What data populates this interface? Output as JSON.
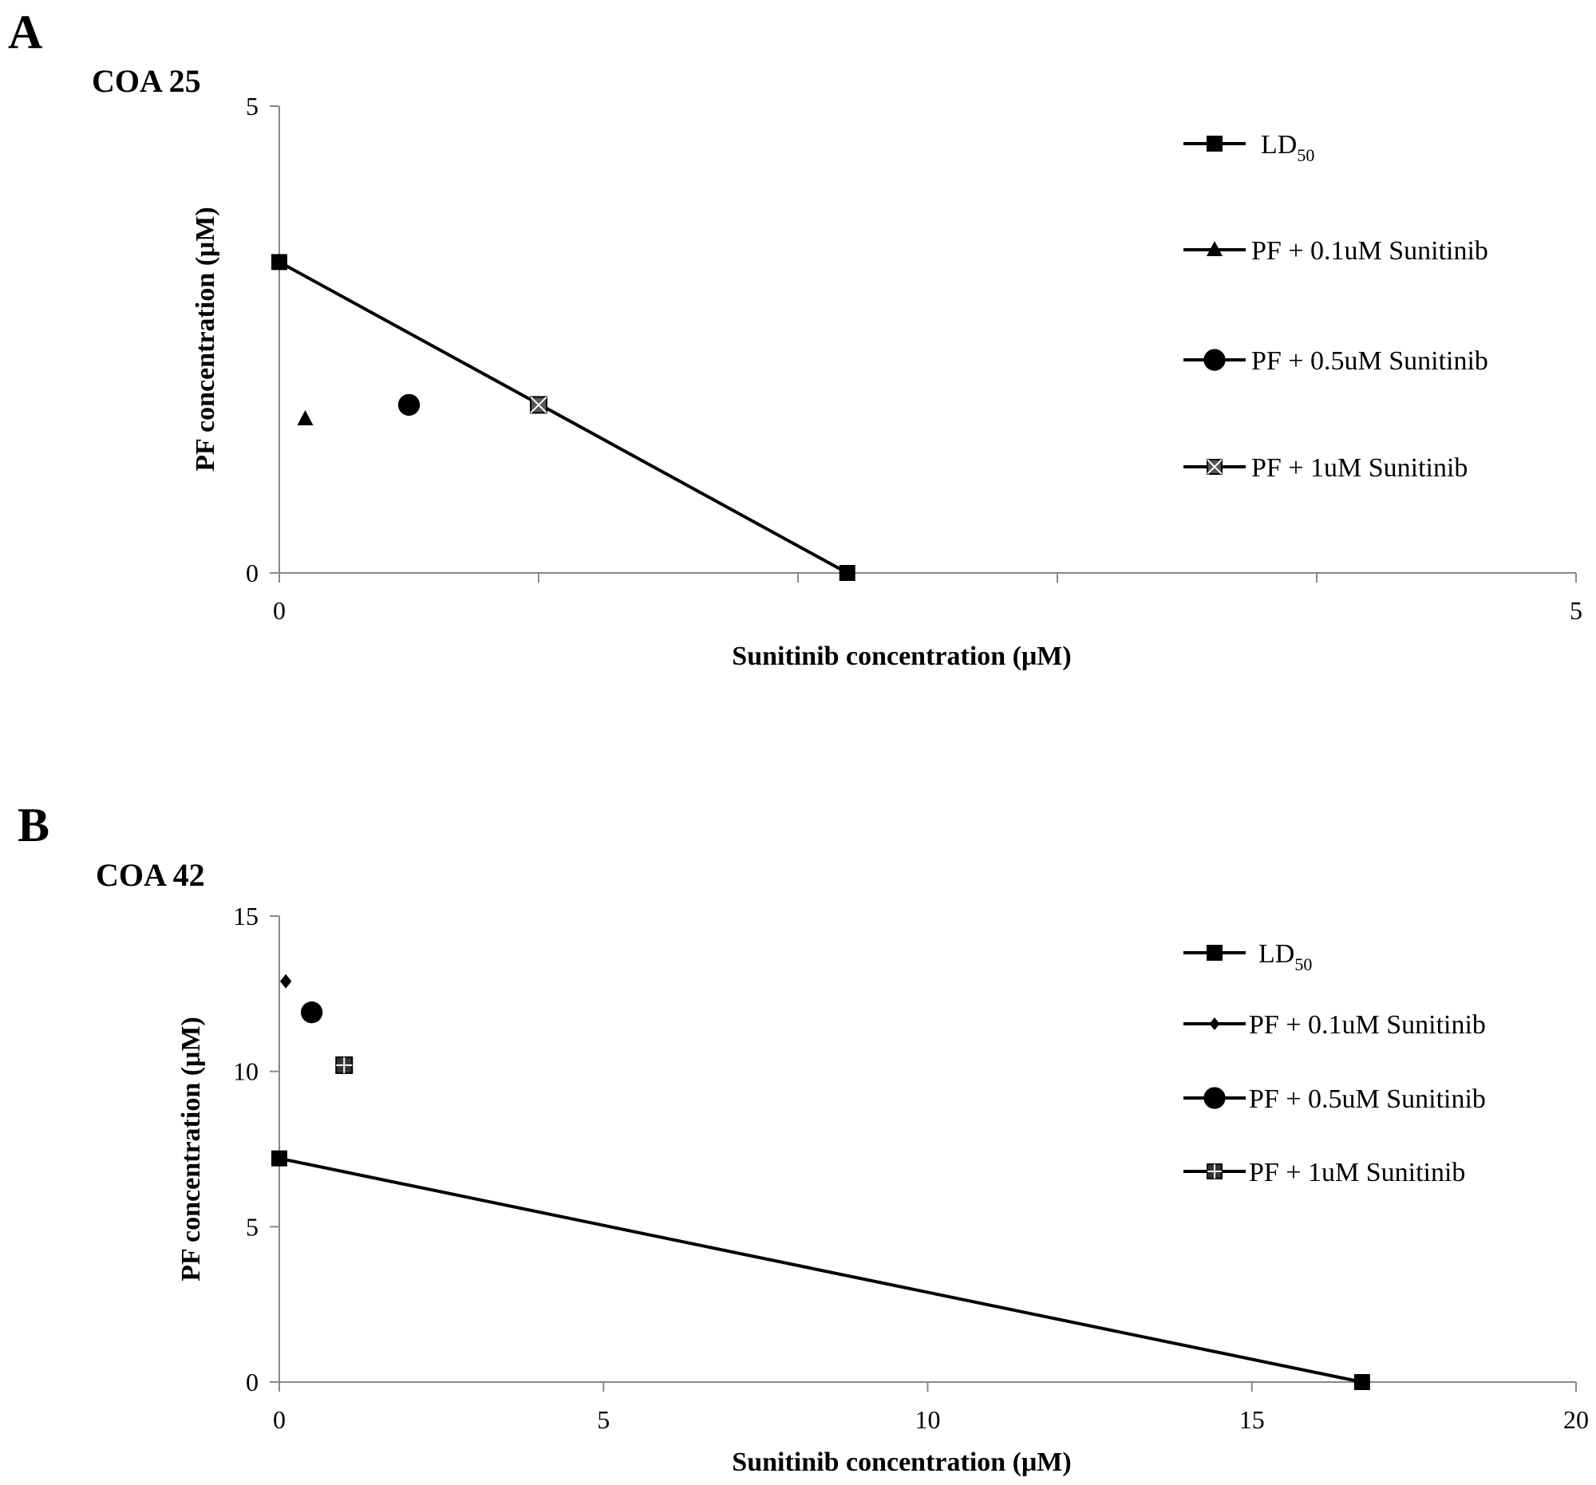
{
  "panels": [
    {
      "letter": "A"
    },
    {
      "letter": "B"
    }
  ],
  "chart_data": [
    {
      "type": "scatter",
      "title": "COA 25",
      "xlabel": "Sunitinib  concentration (μM)",
      "ylabel": "PF concentration (μM)",
      "xlim": [
        0,
        5
      ],
      "ylim": [
        0,
        5
      ],
      "x_ticks": [
        0,
        1,
        2,
        3,
        4,
        5
      ],
      "x_tick_labels": [
        "0",
        "",
        "",
        "",
        "",
        "5"
      ],
      "y_ticks": [
        0,
        5
      ],
      "y_tick_labels": [
        "0",
        "5"
      ],
      "legend_position": "top-right",
      "series": [
        {
          "name": "LD",
          "name_sub": "50",
          "marker": "square",
          "line": true,
          "x": [
            0,
            2.19
          ],
          "y": [
            3.33,
            0
          ]
        },
        {
          "name": "PF + 0.1uM Sunitinib",
          "marker": "triangle",
          "line": false,
          "x": [
            0.1
          ],
          "y": [
            1.65
          ]
        },
        {
          "name": "PF + 0.5uM Sunitinib",
          "marker": "circle",
          "line": false,
          "x": [
            0.5
          ],
          "y": [
            1.8
          ]
        },
        {
          "name": "PF + 1uM Sunitinib",
          "marker": "square-x",
          "line": false,
          "x": [
            1.0
          ],
          "y": [
            1.8
          ]
        }
      ]
    },
    {
      "type": "scatter",
      "title": "COA 42",
      "xlabel": "Sunitinib  concentration (μM)",
      "ylabel": "PF concentration (μM)",
      "xlim": [
        0,
        20
      ],
      "ylim": [
        0,
        15
      ],
      "x_ticks": [
        0,
        5,
        10,
        15,
        20
      ],
      "x_tick_labels": [
        "0",
        "5",
        "10",
        "15",
        "20"
      ],
      "y_ticks": [
        0,
        5,
        10,
        15
      ],
      "y_tick_labels": [
        "0",
        "5",
        "10",
        "15"
      ],
      "legend_position": "top-right",
      "series": [
        {
          "name": "LD",
          "name_sub": "50",
          "marker": "square",
          "line": true,
          "x": [
            0,
            16.7
          ],
          "y": [
            7.2,
            0
          ]
        },
        {
          "name": "PF + 0.1uM Sunitinib",
          "marker": "diamond",
          "line": false,
          "x": [
            0.1
          ],
          "y": [
            12.9
          ]
        },
        {
          "name": "PF + 0.5uM Sunitinib",
          "marker": "circle",
          "line": false,
          "x": [
            0.5
          ],
          "y": [
            11.9
          ]
        },
        {
          "name": "PF + 1uM Sunitinib",
          "marker": "square-plus",
          "line": false,
          "x": [
            1.0
          ],
          "y": [
            10.2
          ]
        }
      ]
    }
  ]
}
